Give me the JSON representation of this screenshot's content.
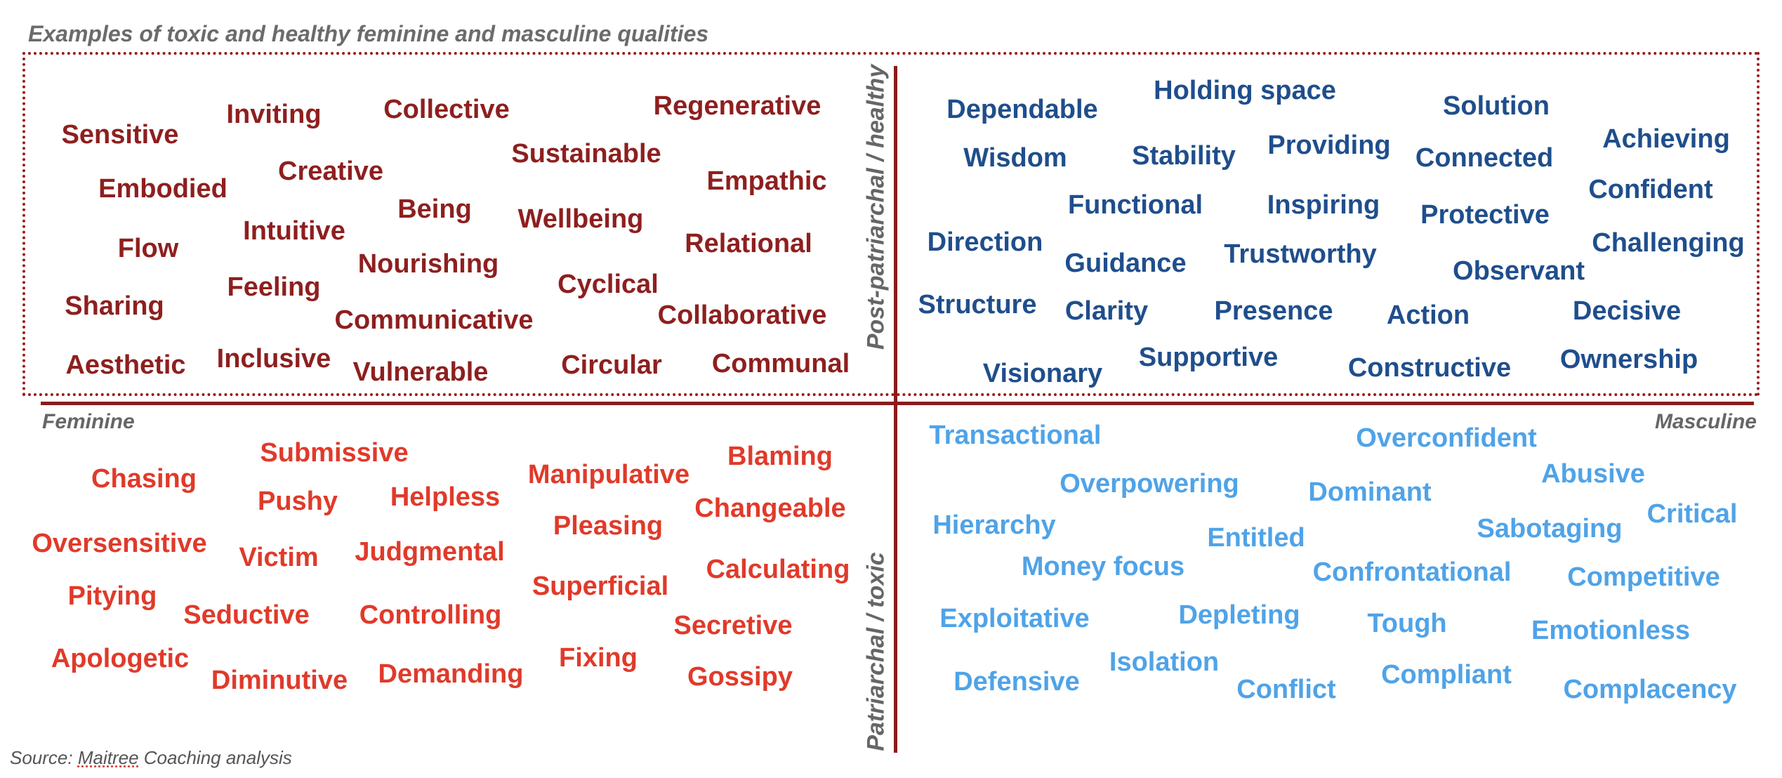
{
  "title": "Examples of toxic and healthy feminine and masculine qualities",
  "axes": {
    "left": "Feminine",
    "right": "Masculine",
    "top": "Post-patriarchal / healthy",
    "bottom": "Patriarchal / toxic"
  },
  "source": {
    "prefix": "Source: ",
    "name": "Maitree",
    "suffix": " Coaching analysis"
  },
  "colors": {
    "feminine_healthy": "#8e1f1f",
    "masculine_healthy": "#1f4e8c",
    "feminine_toxic": "#e03a2a",
    "masculine_toxic": "#4fa3e8",
    "axis": "#8b1a1a"
  },
  "quadrants": {
    "feminine_healthy": [
      "Sensitive",
      "Inviting",
      "Collective",
      "Regenerative",
      "Sustainable",
      "Embodied",
      "Creative",
      "Empathic",
      "Being",
      "Wellbeing",
      "Intuitive",
      "Flow",
      "Relational",
      "Nourishing",
      "Feeling",
      "Cyclical",
      "Sharing",
      "Communicative",
      "Collaborative",
      "Aesthetic",
      "Inclusive",
      "Vulnerable",
      "Circular",
      "Communal"
    ],
    "masculine_healthy": [
      "Dependable",
      "Holding space",
      "Solution",
      "Achieving",
      "Wisdom",
      "Stability",
      "Providing",
      "Connected",
      "Confident",
      "Functional",
      "Inspiring",
      "Protective",
      "Direction",
      "Challenging",
      "Guidance",
      "Trustworthy",
      "Observant",
      "Structure",
      "Clarity",
      "Presence",
      "Action",
      "Decisive",
      "Visionary",
      "Supportive",
      "Constructive",
      "Ownership"
    ],
    "feminine_toxic": [
      "Submissive",
      "Blaming",
      "Chasing",
      "Manipulative",
      "Pushy",
      "Helpless",
      "Changeable",
      "Pleasing",
      "Oversensitive",
      "Victim",
      "Judgmental",
      "Calculating",
      "Superficial",
      "Pitying",
      "Seductive",
      "Controlling",
      "Secretive",
      "Apologetic",
      "Fixing",
      "Diminutive",
      "Demanding",
      "Gossipy"
    ],
    "masculine_toxic": [
      "Transactional",
      "Overconfident",
      "Abusive",
      "Overpowering",
      "Dominant",
      "Critical",
      "Hierarchy",
      "Entitled",
      "Sabotaging",
      "Money focus",
      "Confrontational",
      "Competitive",
      "Exploitative",
      "Depleting",
      "Tough",
      "Emotionless",
      "Isolation",
      "Defensive",
      "Conflict",
      "Compliant",
      "Complacency"
    ]
  }
}
